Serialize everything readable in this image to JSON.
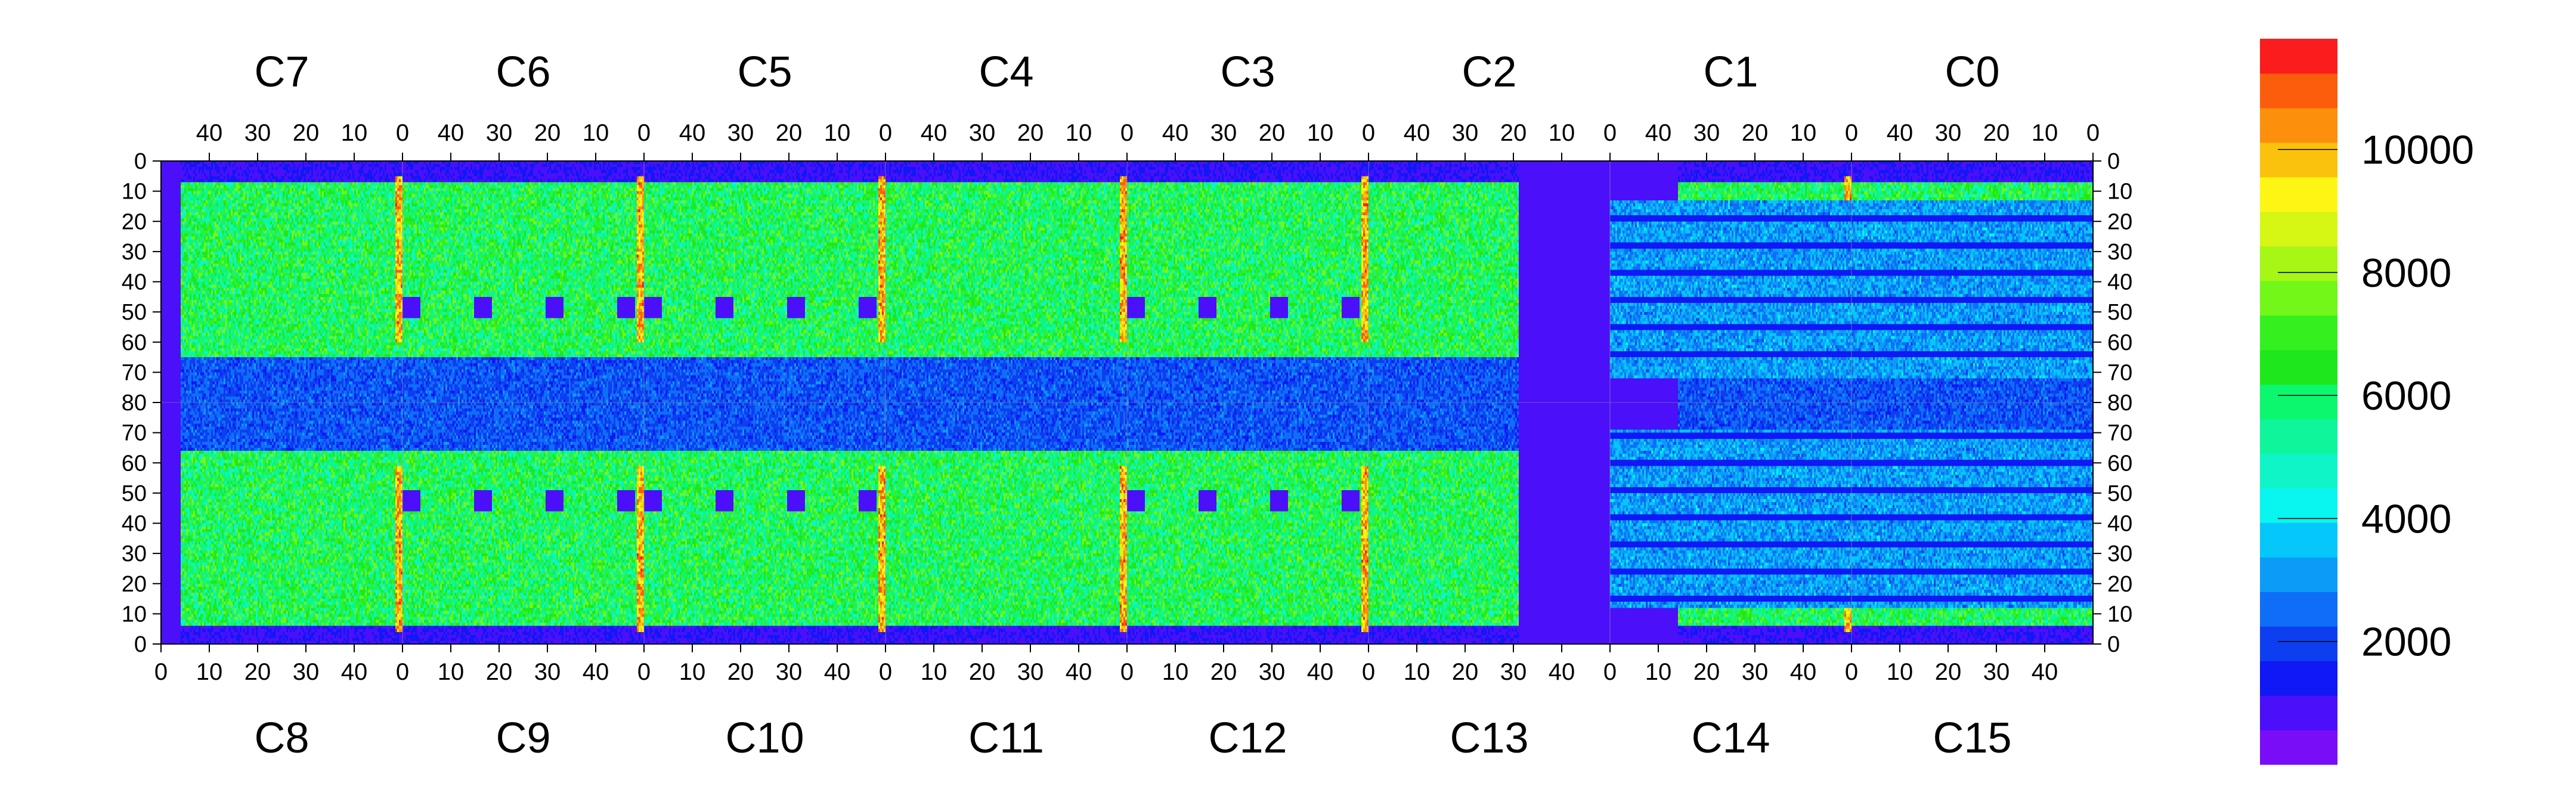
{
  "chart_data": {
    "type": "heatmap",
    "title": "",
    "xlabel": "",
    "ylabel": "",
    "top_chip_labels": [
      "C7",
      "C6",
      "C5",
      "C4",
      "C3",
      "C2",
      "C1",
      "C0"
    ],
    "bottom_chip_labels": [
      "C8",
      "C9",
      "C10",
      "C11",
      "C12",
      "C13",
      "C14",
      "C15"
    ],
    "top_tick_labels": [
      "40",
      "30",
      "20",
      "10",
      "0"
    ],
    "bottom_tick_labels": [
      "0",
      "10",
      "20",
      "30",
      "40"
    ],
    "y_tick_labels": [
      "0",
      "10",
      "20",
      "30",
      "40",
      "50",
      "60",
      "70",
      "80",
      "70",
      "60",
      "50",
      "40",
      "30",
      "20",
      "10",
      "0"
    ],
    "colorbar": {
      "range": [
        0,
        11800
      ],
      "tick_values": [
        2000,
        4000,
        6000,
        8000,
        10000
      ],
      "tick_labels": [
        "2000",
        "4000",
        "6000",
        "8000",
        "10000"
      ],
      "colors": [
        "#7a0df7",
        "#4b0ffa",
        "#0f18f5",
        "#0d3ff0",
        "#0e6ef8",
        "#0c9cf7",
        "#05c7fa",
        "#08f5f0",
        "#10f5c7",
        "#0ef59c",
        "#0cf76d",
        "#1ee81c",
        "#34f01f",
        "#73f719",
        "#a6f616",
        "#d6f614",
        "#fdf615",
        "#fbc20d",
        "#fc8f0c",
        "#fc5d0d",
        "#fb1d1d"
      ]
    },
    "columns": 1080,
    "rows": 160,
    "dominant_values": {
      "background_low": 600,
      "channel_edge_hot": 10800,
      "active_region": 5500,
      "central_band": 2200
    }
  }
}
